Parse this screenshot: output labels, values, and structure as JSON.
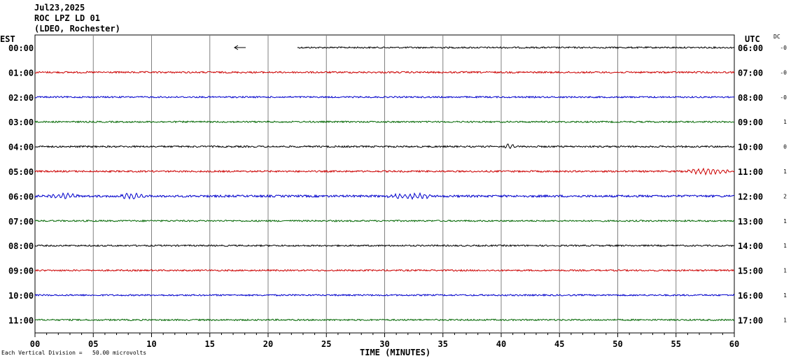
{
  "header": {
    "date": "Jul23,2025",
    "station": "ROC LPZ LD 01",
    "network": "(LDEO, Rochester)"
  },
  "left_tz": "EST",
  "right_tz": "UTC",
  "dc_label": "DC",
  "footer_note": "Each Vertical Division =   50.00 microvolts",
  "chart_data": {
    "type": "line",
    "title": "ROC LPZ LD 01",
    "xlabel": "TIME (MINUTES)",
    "xlim": [
      0,
      60
    ],
    "x_ticks": [
      "00",
      "05",
      "10",
      "15",
      "20",
      "25",
      "30",
      "35",
      "40",
      "45",
      "50",
      "55",
      "60"
    ],
    "grid": true,
    "rows": [
      {
        "left": "00:00",
        "right": "06:00",
        "dc": "-0",
        "color": "#000000",
        "start_min": 22.5,
        "amp": 1.0,
        "events": []
      },
      {
        "left": "01:00",
        "right": "07:00",
        "dc": "-0",
        "color": "#cc0000",
        "start_min": 0,
        "amp": 1.1,
        "events": []
      },
      {
        "left": "02:00",
        "right": "08:00",
        "dc": "-0",
        "color": "#0000cc",
        "start_min": 0,
        "amp": 1.0,
        "events": []
      },
      {
        "left": "03:00",
        "right": "09:00",
        "dc": "1",
        "color": "#006600",
        "start_min": 0,
        "amp": 1.0,
        "events": []
      },
      {
        "left": "04:00",
        "right": "10:00",
        "dc": "0",
        "color": "#000000",
        "start_min": 0,
        "amp": 1.1,
        "events": [
          [
            40.2,
            1.0,
            3.5
          ]
        ]
      },
      {
        "left": "05:00",
        "right": "11:00",
        "dc": "1",
        "color": "#cc0000",
        "start_min": 0,
        "amp": 1.1,
        "events": [
          [
            55.5,
            4.5,
            4.0
          ]
        ]
      },
      {
        "left": "06:00",
        "right": "12:00",
        "dc": "2",
        "color": "#0000cc",
        "start_min": 0,
        "amp": 1.4,
        "events": [
          [
            1.0,
            3.0,
            3.0
          ],
          [
            7.0,
            3.0,
            3.5
          ],
          [
            30.0,
            4.5,
            3.5
          ]
        ]
      },
      {
        "left": "07:00",
        "right": "13:00",
        "dc": "1",
        "color": "#006600",
        "start_min": 0,
        "amp": 1.0,
        "events": []
      },
      {
        "left": "08:00",
        "right": "14:00",
        "dc": "1",
        "color": "#000000",
        "start_min": 0,
        "amp": 1.0,
        "events": []
      },
      {
        "left": "09:00",
        "right": "15:00",
        "dc": "1",
        "color": "#cc0000",
        "start_min": 0,
        "amp": 1.0,
        "events": []
      },
      {
        "left": "10:00",
        "right": "16:00",
        "dc": "1",
        "color": "#0000cc",
        "start_min": 0,
        "amp": 1.0,
        "events": []
      },
      {
        "left": "11:00",
        "right": "17:00",
        "dc": "1",
        "color": "#006600",
        "start_min": 0,
        "amp": 1.0,
        "events": []
      }
    ]
  }
}
